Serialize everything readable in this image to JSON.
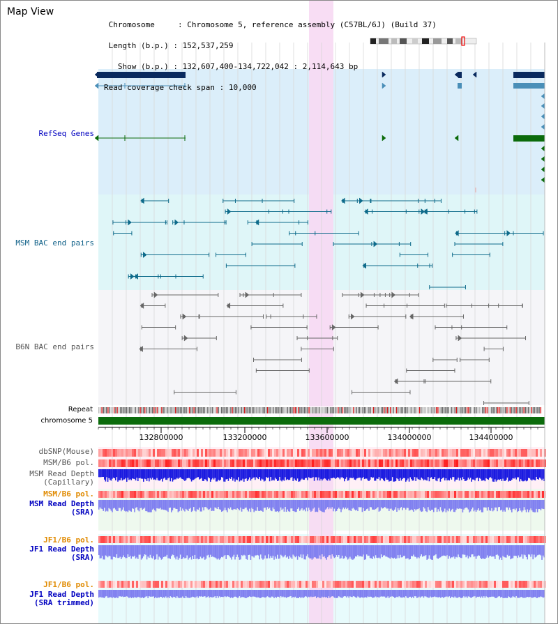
{
  "view_title": "Map View",
  "info": {
    "chromosome_key": "Chromosome",
    "chromosome_val": "Chromosome 5, reference assembly (C57BL/6J) (Build 37)",
    "length_key": "Length (b.p.)",
    "length_val": "152,537,259",
    "show_key": "Show (b.p.)",
    "show_val": "132,607,400-134,722,042 : 2,114,643 bp",
    "coverage_key": "Read coverage check span",
    "coverage_val": "10,000"
  },
  "tracks": {
    "refseq": "RefSeq Genes",
    "msm_bac": "MSM BAC end pairs",
    "b6n_bac": "B6N BAC end pairs",
    "repeat": "Repeat",
    "chromosome": "chromosome 5",
    "dbsnp": "dbSNP(Mouse)",
    "msm_b6_pol": "MSM/B6 pol.",
    "msm_depth_cap_1": "MSM Read Depth",
    "msm_depth_cap_2": "(Capillary)",
    "msm_b6_pol2": "MSM/B6 pol.",
    "msm_depth_sra_1": "MSM Read Depth",
    "msm_depth_sra_2": "(SRA)",
    "jf1_b6_pol": "JF1/B6 pol.",
    "jf1_depth_sra_1": "JF1 Read Depth",
    "jf1_depth_sra_2": "(SRA)",
    "jf1_b6_pol2": "JF1/B6 pol.",
    "jf1_depth_trim_1": "JF1 Read Depth",
    "jf1_depth_trim_2": "(SRA trimmed)"
  },
  "axis_ticks": [
    "132800000",
    "133200000",
    "133600000",
    "134000000",
    "134400000"
  ],
  "colors": {
    "refseq_bg": "#dbeefa",
    "msm_bg": "#dff6f8",
    "b6n_bg": "#f5f5f8",
    "highlight": "#f7d9f3",
    "gene_dark": "#0a2a5e",
    "gene_light": "#4a8fb8",
    "gene_green": "#0b6b0b",
    "msm_line": "#0d6a8a",
    "b6n_line": "#666666",
    "chromosome_bar": "#0b6b0b",
    "depth_blue": "#1a1ae0",
    "depth_light": "#8080f0",
    "label_blue": "#0000c0",
    "label_teal": "#0d5f87",
    "label_orange": "#e08a00"
  }
}
